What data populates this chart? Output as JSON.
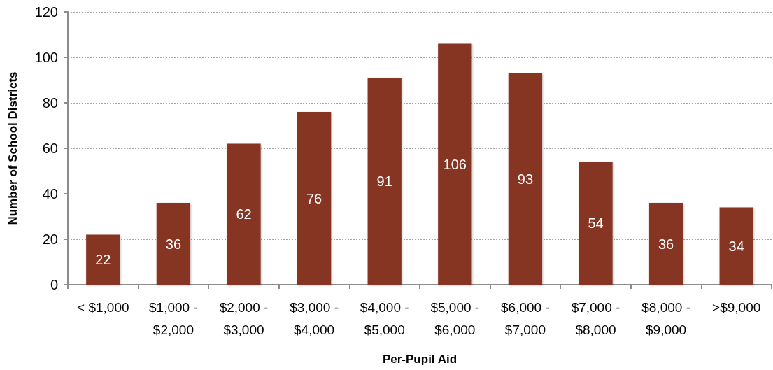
{
  "chart_data": {
    "type": "bar",
    "xlabel": "Per-Pupil Aid",
    "ylabel": "Number of School Districts",
    "categories": [
      "< $1,000",
      "$1,000 - $2,000",
      "$2,000 - $3,000",
      "$3,000 - $4,000",
      "$4,000 - $5,000",
      "$5,000 - $6,000",
      "$6,000 - $7,000",
      "$7,000 - $8,000",
      "$8,000 - $9,000",
      ">$9,000"
    ],
    "values": [
      22,
      36,
      62,
      76,
      91,
      106,
      93,
      54,
      36,
      34
    ],
    "color": "#863524",
    "ylim": [
      0,
      120
    ],
    "yticks": [
      0,
      20,
      40,
      60,
      80,
      100,
      120
    ],
    "grid": "y",
    "data_labels": true
  }
}
